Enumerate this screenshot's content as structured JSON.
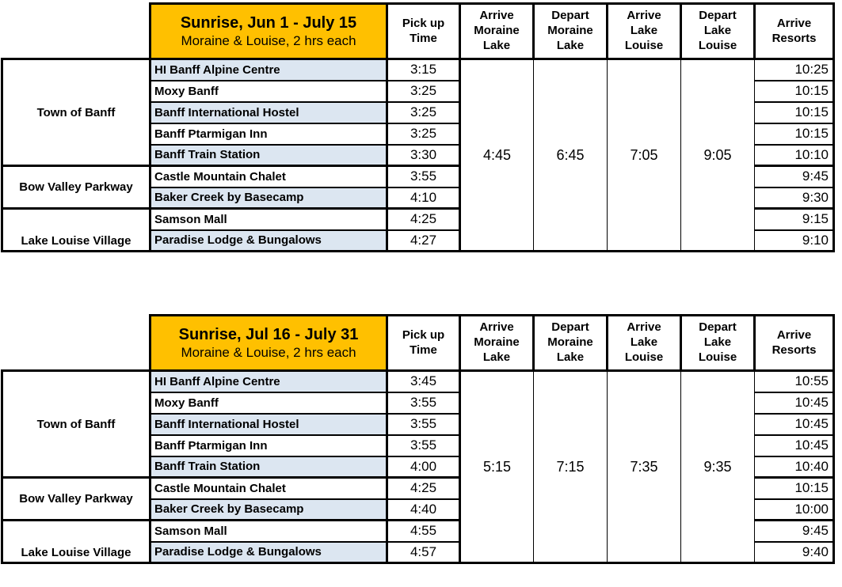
{
  "colors": {
    "header_bg": "#FFC000",
    "row_highlight_bg": "#DCE6F1",
    "border": "#000000"
  },
  "columns": {
    "pickup": "Pick up\nTime",
    "arrive_moraine": "Arrive\nMoraine\nLake",
    "depart_moraine": "Depart\nMoraine\nLake",
    "arrive_louise": "Arrive\nLake\nLouise",
    "depart_louise": "Depart\nLake\nLouise",
    "arrive_resorts": "Arrive\nResorts"
  },
  "groups": [
    "Town of Banff",
    "Bow Valley Parkway",
    "Lake Louise Village"
  ],
  "tables": [
    {
      "title": "Sunrise, Jun 1 - July 15",
      "subtitle": "Moraine & Louise, 2 hrs each",
      "arrive_moraine": "4:45",
      "depart_moraine": "6:45",
      "arrive_louise": "7:05",
      "depart_louise": "9:05",
      "rows": [
        {
          "stop": "HI Banff Alpine Centre",
          "pickup": "3:15",
          "resorts": "10:25"
        },
        {
          "stop": "Moxy Banff",
          "pickup": "3:25",
          "resorts": "10:15"
        },
        {
          "stop": "Banff International Hostel",
          "pickup": "3:25",
          "resorts": "10:15"
        },
        {
          "stop": "Banff Ptarmigan Inn",
          "pickup": "3:25",
          "resorts": "10:15"
        },
        {
          "stop": "Banff Train Station",
          "pickup": "3:30",
          "resorts": "10:10"
        },
        {
          "stop": "Castle Mountain Chalet",
          "pickup": "3:55",
          "resorts": "9:45"
        },
        {
          "stop": "Baker Creek by Basecamp",
          "pickup": "4:10",
          "resorts": "9:30"
        },
        {
          "stop": "Samson Mall",
          "pickup": "4:25",
          "resorts": "9:15"
        },
        {
          "stop": "Paradise Lodge & Bungalows",
          "pickup": "4:27",
          "resorts": "9:10"
        }
      ]
    },
    {
      "title": "Sunrise, Jul 16 - July 31",
      "subtitle": "Moraine & Louise, 2 hrs each",
      "arrive_moraine": "5:15",
      "depart_moraine": "7:15",
      "arrive_louise": "7:35",
      "depart_louise": "9:35",
      "rows": [
        {
          "stop": "HI Banff Alpine Centre",
          "pickup": "3:45",
          "resorts": "10:55"
        },
        {
          "stop": "Moxy Banff",
          "pickup": "3:55",
          "resorts": "10:45"
        },
        {
          "stop": "Banff International Hostel",
          "pickup": "3:55",
          "resorts": "10:45"
        },
        {
          "stop": "Banff Ptarmigan Inn",
          "pickup": "3:55",
          "resorts": "10:45"
        },
        {
          "stop": "Banff Train Station",
          "pickup": "4:00",
          "resorts": "10:40"
        },
        {
          "stop": "Castle Mountain Chalet",
          "pickup": "4:25",
          "resorts": "10:15"
        },
        {
          "stop": "Baker Creek by Basecamp",
          "pickup": "4:40",
          "resorts": "10:00"
        },
        {
          "stop": "Samson Mall",
          "pickup": "4:55",
          "resorts": "9:45"
        },
        {
          "stop": "Paradise Lodge & Bungalows",
          "pickup": "4:57",
          "resorts": "9:40"
        }
      ]
    }
  ]
}
